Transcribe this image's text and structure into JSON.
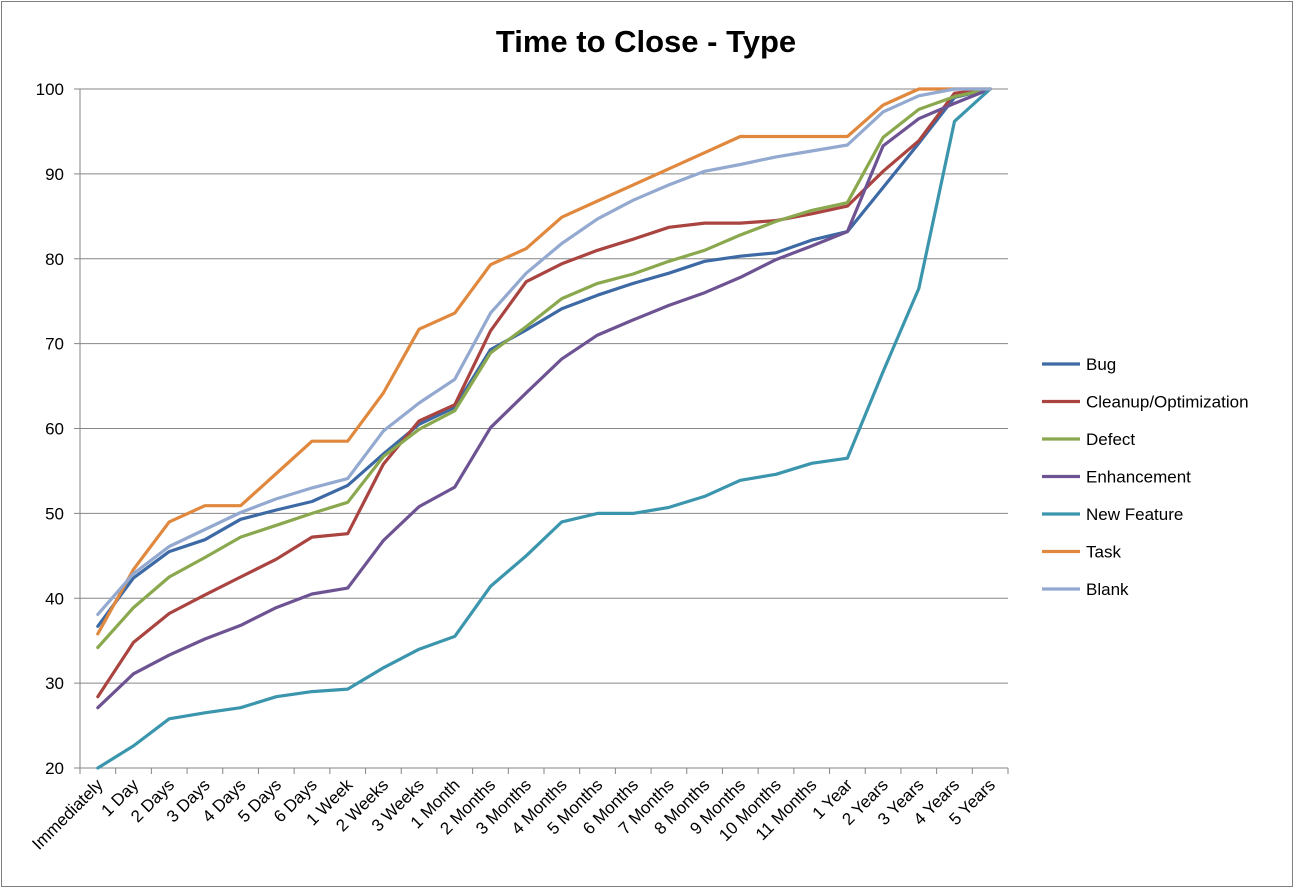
{
  "chart_data": {
    "type": "line",
    "title": "Time to Close - Type",
    "xlabel": "",
    "ylabel": "",
    "ylim": [
      20,
      100
    ],
    "yticks": [
      20,
      30,
      40,
      50,
      60,
      70,
      80,
      90,
      100
    ],
    "grid": "horizontal",
    "legend_position": "right",
    "categories": [
      "Immediately",
      "1 Day",
      "2 Days",
      "3 Days",
      "4 Days",
      "5 Days",
      "6 Days",
      "1 Week",
      "2 Weeks",
      "3 Weeks",
      "1 Month",
      "2 Months",
      "3 Months",
      "4 Months",
      "5 Months",
      "6 Months",
      "7 Months",
      "8 Months",
      "9 Months",
      "10 Months",
      "11 Months",
      "1 Year",
      "2 Years",
      "3 Years",
      "4 Years",
      "5 Years"
    ],
    "series": [
      {
        "name": "Bug",
        "color": "#3d6aa5",
        "values": [
          36.7,
          42.4,
          45.5,
          46.9,
          49.3,
          50.4,
          51.4,
          53.3,
          57.0,
          60.5,
          62.5,
          69.3,
          71.6,
          74.1,
          75.7,
          77.1,
          78.3,
          79.7,
          80.3,
          80.7,
          82.2,
          83.2,
          88.4,
          93.6,
          99.0,
          100
        ]
      },
      {
        "name": "Cleanup/Optimization",
        "color": "#a94441",
        "values": [
          28.4,
          34.8,
          38.2,
          40.4,
          42.5,
          44.6,
          47.2,
          47.6,
          55.8,
          60.9,
          62.8,
          71.5,
          77.3,
          79.4,
          81.0,
          82.3,
          83.7,
          84.2,
          84.2,
          84.5,
          85.3,
          86.2,
          90.3,
          93.9,
          99.5,
          100
        ]
      },
      {
        "name": "Defect",
        "color": "#8aa84d",
        "values": [
          34.2,
          38.9,
          42.5,
          44.8,
          47.2,
          48.6,
          50.0,
          51.3,
          56.7,
          59.9,
          62.1,
          68.9,
          72.0,
          75.3,
          77.1,
          78.2,
          79.7,
          81.0,
          82.8,
          84.4,
          85.7,
          86.6,
          94.3,
          97.6,
          99.1,
          100
        ]
      },
      {
        "name": "Enhancement",
        "color": "#6e5393",
        "values": [
          27.1,
          31.1,
          33.3,
          35.2,
          36.8,
          38.9,
          40.5,
          41.2,
          46.8,
          50.8,
          53.1,
          60.1,
          64.2,
          68.2,
          71.0,
          72.8,
          74.5,
          76.0,
          77.8,
          79.9,
          81.5,
          83.2,
          93.3,
          96.5,
          98.3,
          100
        ]
      },
      {
        "name": "New Feature",
        "color": "#3b96ad",
        "values": [
          20.0,
          22.6,
          25.8,
          26.5,
          27.1,
          28.4,
          29.0,
          29.3,
          31.8,
          34.0,
          35.5,
          41.4,
          45.0,
          49.0,
          50.0,
          50.0,
          50.7,
          52.0,
          53.9,
          54.6,
          55.9,
          56.5,
          66.7,
          76.5,
          96.2,
          100
        ]
      },
      {
        "name": "Task",
        "color": "#e0883d",
        "values": [
          35.8,
          43.4,
          49.0,
          50.9,
          50.9,
          54.7,
          58.5,
          58.5,
          64.2,
          71.7,
          73.6,
          79.3,
          81.2,
          84.9,
          86.8,
          88.7,
          90.6,
          92.5,
          94.4,
          94.4,
          94.4,
          94.4,
          98.1,
          100,
          100,
          100
        ]
      },
      {
        "name": "Blank",
        "color": "#93a9d0",
        "values": [
          38.1,
          42.9,
          46.1,
          48.1,
          50.1,
          51.7,
          53.0,
          54.1,
          59.7,
          63.0,
          65.8,
          73.6,
          78.3,
          81.8,
          84.7,
          86.9,
          88.7,
          90.3,
          91.1,
          92.0,
          92.7,
          93.4,
          97.3,
          99.2,
          100,
          100
        ]
      }
    ]
  }
}
